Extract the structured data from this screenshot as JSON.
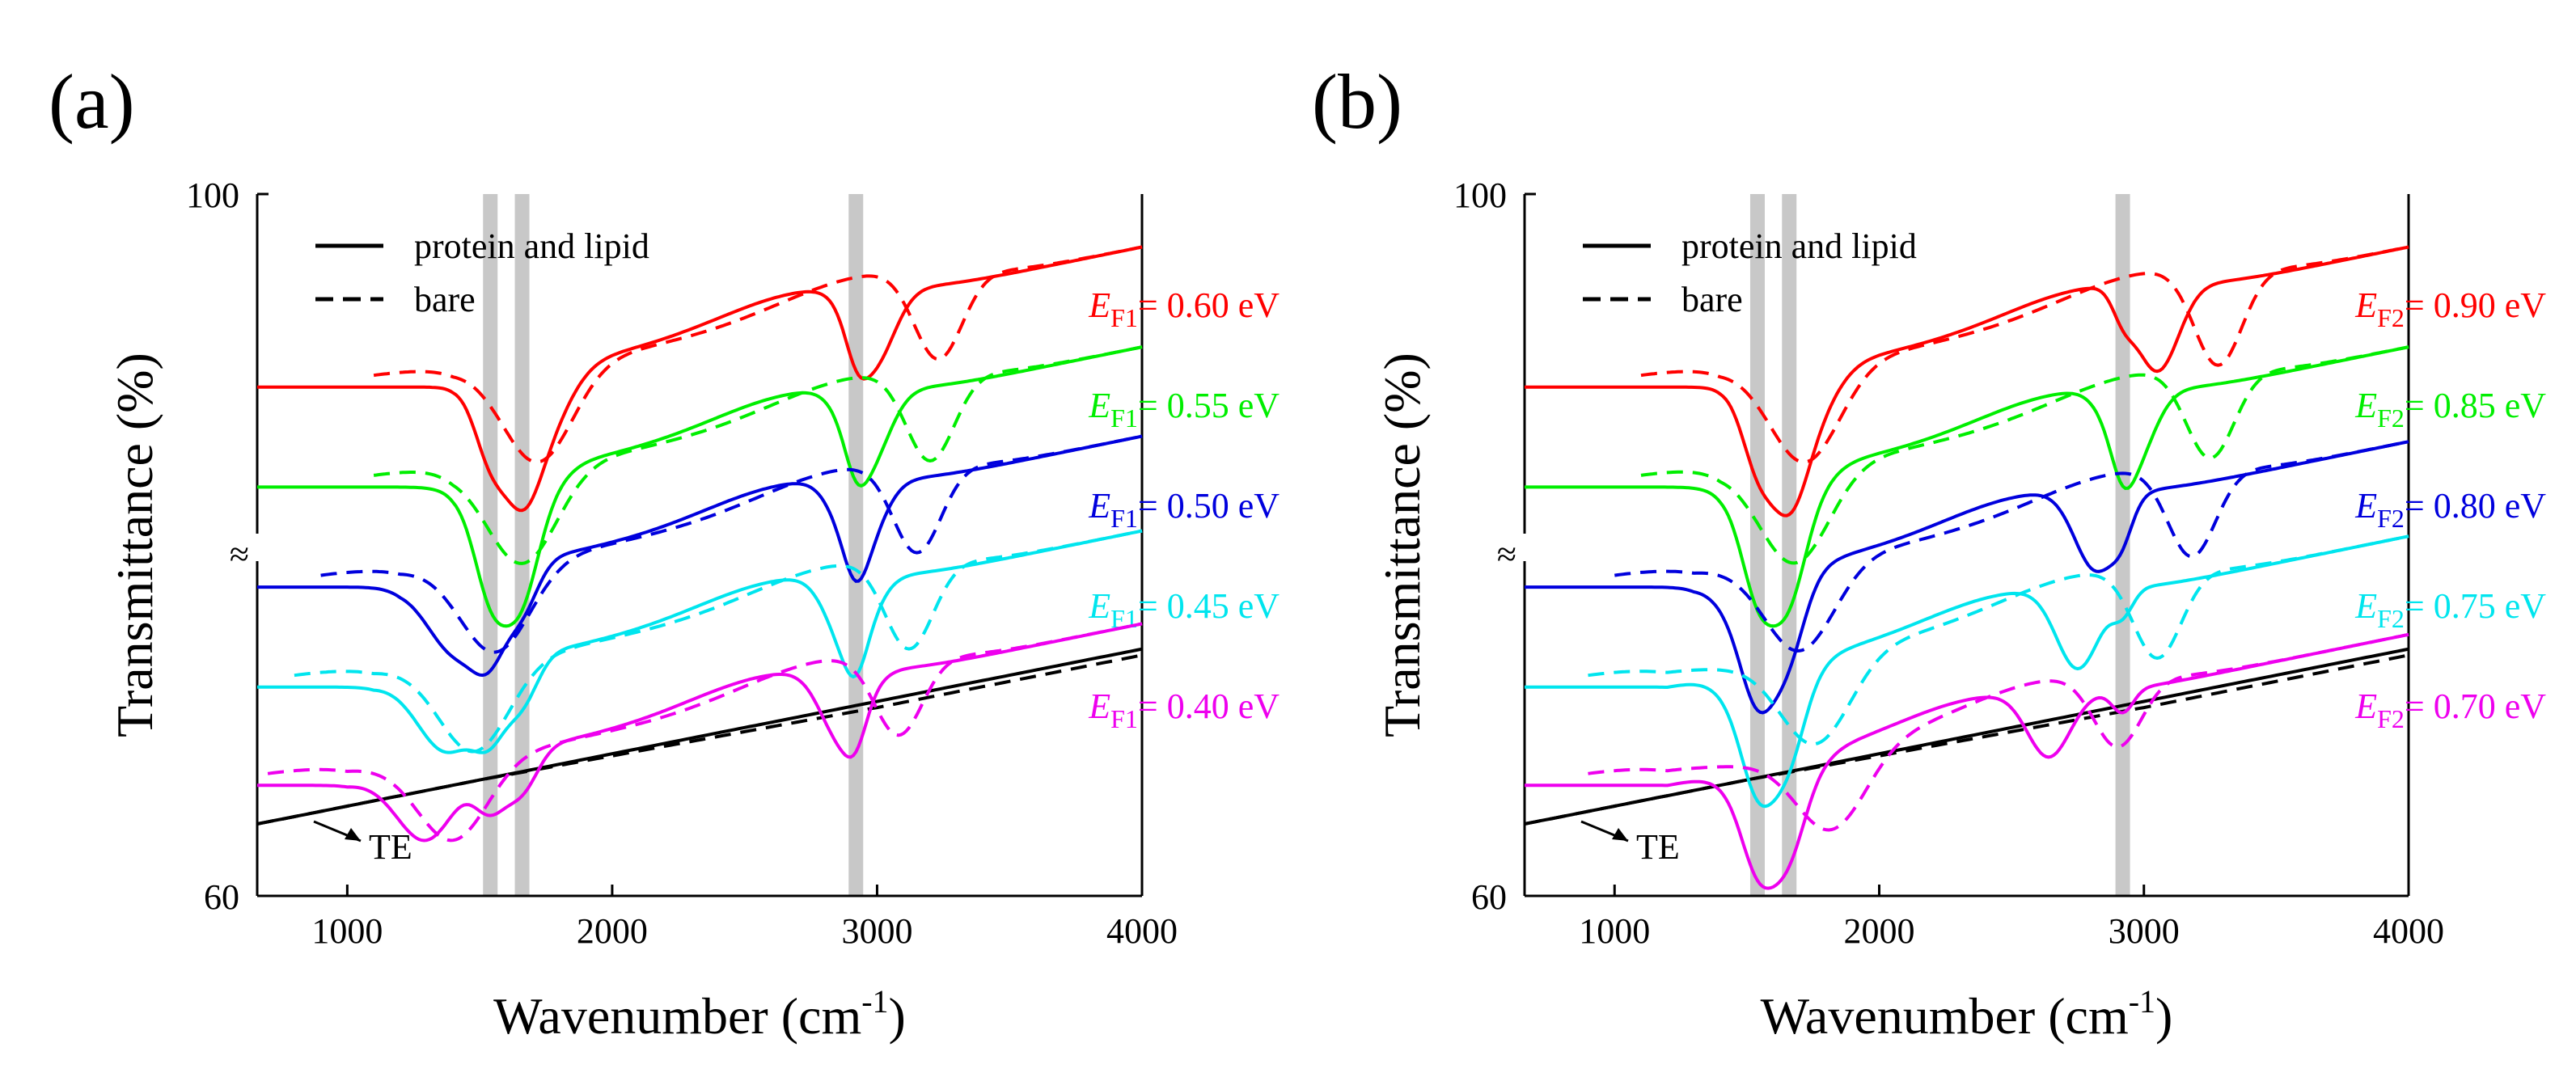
{
  "chart_data": [
    {
      "type": "line",
      "panel_label": "(a)",
      "xlabel": "Wavenumber (cm",
      "xlabel_sup": "-1",
      "xlabel_end": ")",
      "ylabel": "Transmittance (%)",
      "xlim": [
        660,
        4000
      ],
      "y_tick_labels": [
        "100",
        "60"
      ],
      "x_ticks": [
        1000,
        2000,
        3000,
        4000
      ],
      "x_tick_labels": [
        "1000",
        "2000",
        "3000",
        "4000"
      ],
      "axis_break": "≈",
      "legend": {
        "solid": "protein and lipid",
        "dashed": "bare"
      },
      "highlight_bands": [
        1540,
        1660,
        2920
      ],
      "te_label": "TE",
      "series": [
        {
          "name": "E_F1 = 0.60 eV",
          "e_letter": "E",
          "e_sub": "F1",
          "e_value": "= 0.60 eV",
          "color": "#ff0000",
          "base": 89.0,
          "slope": 0.00307,
          "knee": 1400,
          "peak_bare": 1720,
          "peak_loaded": 1700,
          "band_amp": 5.5,
          "mid_peak_bare": 3230,
          "mid_peak_loaded": 2980,
          "mid_amp": 5.0
        },
        {
          "name": "E_F1 = 0.55 eV",
          "e_letter": "E",
          "e_sub": "F1",
          "e_value": "= 0.55 eV",
          "color": "#00ee00",
          "base": 83.3,
          "slope": 0.00307,
          "knee": 1400,
          "peak_bare": 1660,
          "peak_loaded": 1620,
          "band_amp": 5.5,
          "mid_peak_bare": 3200,
          "mid_peak_loaded": 2960,
          "mid_amp": 5.0
        },
        {
          "name": "E_F1 = 0.50 eV",
          "e_letter": "E",
          "e_sub": "F1",
          "e_value": "= 0.50 eV",
          "color": "#0000dd",
          "base": 77.6,
          "slope": 0.00307,
          "knee": 1200,
          "peak_bare": 1560,
          "peak_loaded": 1420,
          "band_amp": 5.0,
          "mid_peak_bare": 3150,
          "mid_peak_loaded": 2930,
          "mid_amp": 5.0
        },
        {
          "name": "E_F1 = 0.45 eV",
          "e_letter": "E",
          "e_sub": "F1",
          "e_value": "= 0.45 eV",
          "color": "#00e5ee",
          "base": 71.9,
          "slope": 0.00307,
          "knee": 1100,
          "peak_bare": 1480,
          "peak_loaded": 1380,
          "band_amp": 5.0,
          "mid_peak_bare": 3120,
          "mid_peak_loaded": 2900,
          "mid_amp": 5.0
        },
        {
          "name": "E_F1 = 0.40 eV",
          "e_letter": "E",
          "e_sub": "F1",
          "e_value": "= 0.40 eV",
          "color": "#ee00ee",
          "base": 66.3,
          "slope": 0.00307,
          "knee": 1000,
          "peak_bare": 1400,
          "peak_loaded": 1300,
          "band_amp": 4.5,
          "mid_peak_bare": 3080,
          "mid_peak_loaded": 2870,
          "mid_amp": 4.5
        }
      ]
    },
    {
      "type": "line",
      "panel_label": "(b)",
      "xlabel": "Wavenumber (cm",
      "xlabel_sup": "-1",
      "xlabel_end": ")",
      "ylabel": "Transmittance (%)",
      "xlim": [
        660,
        4000
      ],
      "y_tick_labels": [
        "100",
        "60"
      ],
      "x_ticks": [
        1000,
        2000,
        3000,
        4000
      ],
      "x_tick_labels": [
        "1000",
        "2000",
        "3000",
        "4000"
      ],
      "axis_break": "≈",
      "legend": {
        "solid": "protein and lipid",
        "dashed": "bare"
      },
      "highlight_bands": [
        1540,
        1660,
        2920
      ],
      "te_label": "TE",
      "series": [
        {
          "name": "E_F2 = 0.90 eV",
          "e_letter": "E",
          "e_sub": "F2",
          "e_value": "= 0.90 eV",
          "color": "#ff0000",
          "base": 89.0,
          "slope": 0.00307,
          "knee": 1400,
          "peak_bare": 1720,
          "peak_loaded": 1680,
          "band_amp": 5.5,
          "mid_peak_bare": 3280,
          "mid_peak_loaded": 3050,
          "mid_amp": 5.5
        },
        {
          "name": "E_F2 = 0.85 eV",
          "e_letter": "E",
          "e_sub": "F2",
          "e_value": "= 0.85 eV",
          "color": "#00ee00",
          "base": 83.3,
          "slope": 0.00307,
          "knee": 1400,
          "peak_bare": 1680,
          "peak_loaded": 1620,
          "band_amp": 5.5,
          "mid_peak_bare": 3250,
          "mid_peak_loaded": 2950,
          "mid_amp": 5.0
        },
        {
          "name": "E_F2 = 0.80 eV",
          "e_letter": "E",
          "e_sub": "F2",
          "e_value": "= 0.80 eV",
          "color": "#0000dd",
          "base": 77.6,
          "slope": 0.00307,
          "knee": 1300,
          "peak_bare": 1700,
          "peak_loaded": 1560,
          "band_amp": 5.0,
          "mid_peak_bare": 3180,
          "mid_peak_loaded": 2820,
          "mid_amp": 5.0
        },
        {
          "name": "E_F2 = 0.75 eV",
          "e_letter": "E",
          "e_sub": "F2",
          "e_value": "= 0.75 eV",
          "color": "#00e5ee",
          "base": 71.9,
          "slope": 0.00307,
          "knee": 1200,
          "peak_bare": 1760,
          "peak_loaded": 1580,
          "band_amp": 5.0,
          "mid_peak_bare": 3050,
          "mid_peak_loaded": 2750,
          "mid_amp": 5.0
        },
        {
          "name": "E_F2 = 0.70 eV",
          "e_letter": "E",
          "e_sub": "F2",
          "e_value": "= 0.70 eV",
          "color": "#ee00ee",
          "base": 66.3,
          "slope": 0.00307,
          "knee": 1200,
          "peak_bare": 1820,
          "peak_loaded": 1600,
          "band_amp": 4.5,
          "mid_peak_bare": 2900,
          "mid_peak_loaded": 2640,
          "mid_amp": 4.0
        }
      ]
    }
  ]
}
